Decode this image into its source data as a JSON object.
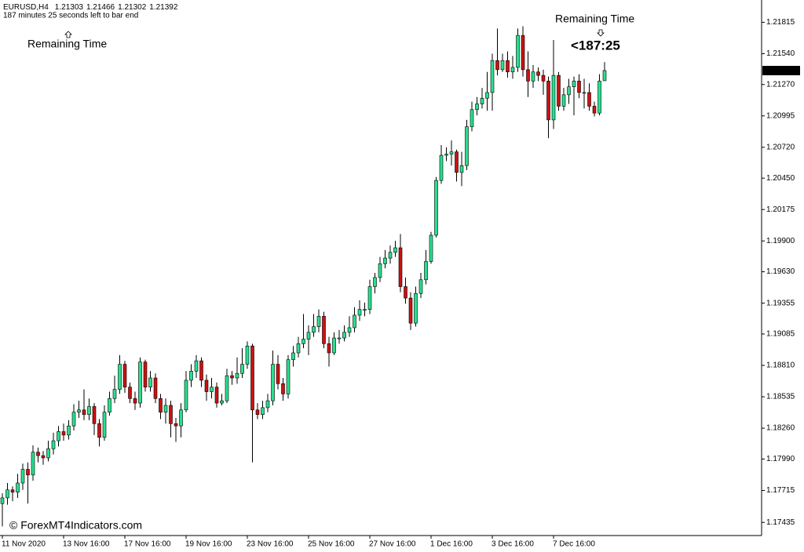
{
  "chart_data": {
    "type": "candlestick",
    "symbol": "EURUSD,H4",
    "timer_text": "187 minutes 25 seconds left to bar end",
    "annotations": [
      "Remaining Time",
      "Remaining Time",
      "<187:25"
    ],
    "watermark": "© ForexMT4Indicators.com",
    "up_color": "#27e08f",
    "down_color": "#cc1111",
    "annotation_color": "#ff0000",
    "categories": [
      "11 Nov 2020",
      null,
      null,
      null,
      null,
      null,
      null,
      null,
      null,
      null,
      null,
      null,
      "13 Nov 16:00",
      null,
      null,
      null,
      null,
      null,
      null,
      null,
      null,
      null,
      null,
      null,
      "17 Nov 16:00",
      null,
      null,
      null,
      null,
      null,
      null,
      null,
      null,
      null,
      null,
      null,
      "19 Nov 16:00",
      null,
      null,
      null,
      null,
      null,
      null,
      null,
      null,
      null,
      null,
      null,
      "23 Nov 16:00",
      null,
      null,
      null,
      null,
      null,
      null,
      null,
      null,
      null,
      null,
      null,
      "25 Nov 16:00",
      null,
      null,
      null,
      null,
      null,
      null,
      null,
      null,
      null,
      null,
      null,
      "27 Nov 16:00",
      null,
      null,
      null,
      null,
      null,
      null,
      null,
      null,
      null,
      null,
      null,
      "1 Dec 16:00",
      null,
      null,
      null,
      null,
      null,
      null,
      null,
      null,
      null,
      null,
      null,
      "3 Dec 16:00",
      null,
      null,
      null,
      null,
      null,
      null,
      null,
      null,
      null,
      null,
      null,
      "7 Dec 16:00",
      null,
      null,
      null,
      null,
      null,
      null,
      null,
      null,
      null,
      null
    ],
    "open": [
      1.176,
      1.1765,
      1.1772,
      1.177,
      1.1778,
      1.179,
      1.1785,
      1.1805,
      1.1802,
      1.18,
      1.1808,
      1.1815,
      1.1823,
      1.182,
      1.1828,
      1.184,
      1.1842,
      1.1838,
      1.1845,
      1.183,
      1.1818,
      1.184,
      1.1852,
      1.186,
      1.1882,
      1.1862,
      1.1852,
      1.1848,
      1.1884,
      1.1862,
      1.187,
      1.1852,
      1.184,
      1.1846,
      1.183,
      1.1828,
      1.1842,
      1.1868,
      1.1876,
      1.1885,
      1.1868,
      1.1858,
      1.1862,
      1.1848,
      1.185,
      1.1872,
      1.187,
      1.1874,
      1.1882,
      1.1898,
      1.1842,
      1.1838,
      1.1844,
      1.185,
      1.1882,
      1.1865,
      1.1856,
      1.1886,
      1.1892,
      1.19,
      1.1904,
      1.191,
      1.1915,
      1.1924,
      1.19,
      1.1892,
      1.1905,
      1.1905,
      1.191,
      1.1914,
      1.1925,
      1.193,
      1.193,
      1.195,
      1.1958,
      1.197,
      1.1975,
      1.198,
      1.1984,
      1.195,
      1.194,
      1.1918,
      1.1944,
      1.1956,
      1.1972,
      1.1995,
      1.2043,
      1.2065,
      1.2066,
      1.2068,
      1.205,
      1.2056,
      1.209,
      1.2105,
      1.211,
      1.2115,
      1.212,
      1.2148,
      1.214,
      1.2148,
      1.2138,
      1.2142,
      1.217,
      1.214,
      1.213,
      1.2138,
      1.2135,
      1.213,
      1.2096,
      1.2135,
      1.2108,
      1.2118,
      1.2125,
      1.213,
      1.212,
      1.212,
      1.2108,
      1.2102,
      1.21303
    ],
    "high": [
      1.1769,
      1.1778,
      1.1775,
      1.1786,
      1.1795,
      1.1796,
      1.1811,
      1.1809,
      1.1806,
      1.1815,
      1.1822,
      1.1828,
      1.183,
      1.1833,
      1.1847,
      1.185,
      1.186,
      1.1852,
      1.1848,
      1.1834,
      1.1846,
      1.1858,
      1.1872,
      1.189,
      1.1885,
      1.1866,
      1.1858,
      1.1888,
      1.1886,
      1.1876,
      1.1874,
      1.1856,
      1.1852,
      1.185,
      1.1835,
      1.1848,
      1.1876,
      1.1882,
      1.189,
      1.1888,
      1.1873,
      1.187,
      1.1866,
      1.1856,
      1.1878,
      1.1876,
      1.1888,
      1.1896,
      1.1902,
      1.19,
      1.1848,
      1.185,
      1.1856,
      1.1894,
      1.189,
      1.187,
      1.189,
      1.1898,
      1.1906,
      1.1926,
      1.1916,
      1.1926,
      1.193,
      1.1928,
      1.1906,
      1.191,
      1.1912,
      1.1916,
      1.1924,
      1.1932,
      1.1938,
      1.1936,
      1.1956,
      1.1962,
      1.1976,
      1.1982,
      1.1986,
      1.199,
      1.1996,
      1.1958,
      1.1945,
      1.195,
      1.1962,
      1.1982,
      1.1998,
      1.2046,
      1.2074,
      1.2072,
      1.2078,
      1.207,
      1.2068,
      1.2096,
      1.2112,
      1.2116,
      1.2124,
      1.2138,
      1.2154,
      1.2176,
      1.2154,
      1.2156,
      1.2152,
      1.2176,
      1.2178,
      1.2156,
      1.2144,
      1.2142,
      1.214,
      1.2134,
      1.2166,
      1.2138,
      1.2124,
      1.2132,
      1.2134,
      1.2136,
      1.2132,
      1.2128,
      1.2112,
      1.2136,
      1.21466
    ],
    "low": [
      1.174,
      1.1759,
      1.1762,
      1.1765,
      1.1772,
      1.176,
      1.178,
      1.1796,
      1.1794,
      1.1797,
      1.1803,
      1.181,
      1.1815,
      1.1816,
      1.1824,
      1.1835,
      1.1833,
      1.1833,
      1.182,
      1.181,
      1.1815,
      1.1837,
      1.1848,
      1.1856,
      1.1857,
      1.1848,
      1.1842,
      1.1844,
      1.1858,
      1.1858,
      1.1848,
      1.1834,
      1.183,
      1.1818,
      1.1814,
      1.1818,
      1.184,
      1.1862,
      1.187,
      1.1862,
      1.185,
      1.1852,
      1.1844,
      1.1846,
      1.1848,
      1.1864,
      1.1865,
      1.187,
      1.1878,
      1.1796,
      1.1834,
      1.1834,
      1.184,
      1.1846,
      1.186,
      1.185,
      1.1852,
      1.188,
      1.1888,
      1.1896,
      1.189,
      1.1906,
      1.191,
      1.1896,
      1.188,
      1.189,
      1.19,
      1.1902,
      1.1906,
      1.191,
      1.192,
      1.1924,
      1.1926,
      1.1944,
      1.1954,
      1.1966,
      1.197,
      1.1976,
      1.1945,
      1.1935,
      1.1912,
      1.1915,
      1.194,
      1.1952,
      1.197,
      1.1993,
      1.204,
      1.206,
      1.2056,
      1.2042,
      1.2038,
      1.2052,
      1.2086,
      1.21,
      1.2106,
      1.2104,
      1.2104,
      1.2135,
      1.2138,
      1.2133,
      1.2132,
      1.2138,
      1.2134,
      1.2116,
      1.2124,
      1.213,
      1.2118,
      1.208,
      1.2088,
      1.2104,
      1.2104,
      1.211,
      1.21,
      1.2115,
      1.2106,
      1.2104,
      1.2099,
      1.21,
      1.21302
    ],
    "close": [
      1.1765,
      1.1772,
      1.177,
      1.1778,
      1.179,
      1.1785,
      1.1805,
      1.1802,
      1.18,
      1.1808,
      1.1815,
      1.1823,
      1.182,
      1.1828,
      1.184,
      1.1842,
      1.1838,
      1.1845,
      1.183,
      1.1818,
      1.184,
      1.1852,
      1.186,
      1.1882,
      1.1862,
      1.1852,
      1.1848,
      1.1884,
      1.1862,
      1.187,
      1.1852,
      1.184,
      1.1846,
      1.183,
      1.1828,
      1.1842,
      1.1868,
      1.1876,
      1.1885,
      1.1868,
      1.1858,
      1.1862,
      1.1848,
      1.185,
      1.1872,
      1.187,
      1.1874,
      1.1882,
      1.1898,
      1.1842,
      1.1838,
      1.1844,
      1.185,
      1.1882,
      1.1865,
      1.1856,
      1.1886,
      1.1892,
      1.19,
      1.1904,
      1.191,
      1.1915,
      1.1924,
      1.19,
      1.1892,
      1.1905,
      1.1905,
      1.191,
      1.1914,
      1.1925,
      1.193,
      1.193,
      1.195,
      1.1958,
      1.197,
      1.1975,
      1.198,
      1.1984,
      1.195,
      1.194,
      1.1918,
      1.1944,
      1.1956,
      1.1972,
      1.1995,
      1.2043,
      1.2065,
      1.2066,
      1.2068,
      1.205,
      1.2056,
      1.209,
      1.2105,
      1.211,
      1.2115,
      1.212,
      1.2148,
      1.214,
      1.2148,
      1.2138,
      1.2142,
      1.217,
      1.214,
      1.213,
      1.2138,
      1.2135,
      1.213,
      1.2096,
      1.2135,
      1.2108,
      1.2118,
      1.2125,
      1.213,
      1.212,
      1.212,
      1.2108,
      1.2102,
      1.213,
      1.21392
    ],
    "ylim": [
      1.1732,
      1.2201
    ],
    "yticks": [
      1.21815,
      {
        "value": 1.2154,
        "label": "1.21540"
      },
      {
        "value": 1.2127,
        "label": "1.21270"
      },
      1.20995,
      {
        "value": 1.2072,
        "label": "1.20720"
      },
      {
        "value": 1.2045,
        "label": "1.20450"
      },
      1.20175,
      {
        "value": 1.199,
        "label": "1.19900"
      },
      {
        "value": 1.1963,
        "label": "1.19630"
      },
      1.19355,
      1.19085,
      {
        "value": 1.1881,
        "label": "1.18810"
      },
      1.18535,
      {
        "value": 1.1826,
        "label": "1.18260"
      },
      {
        "value": 1.1799,
        "label": "1.17990"
      },
      1.17715,
      1.17435
    ]
  }
}
